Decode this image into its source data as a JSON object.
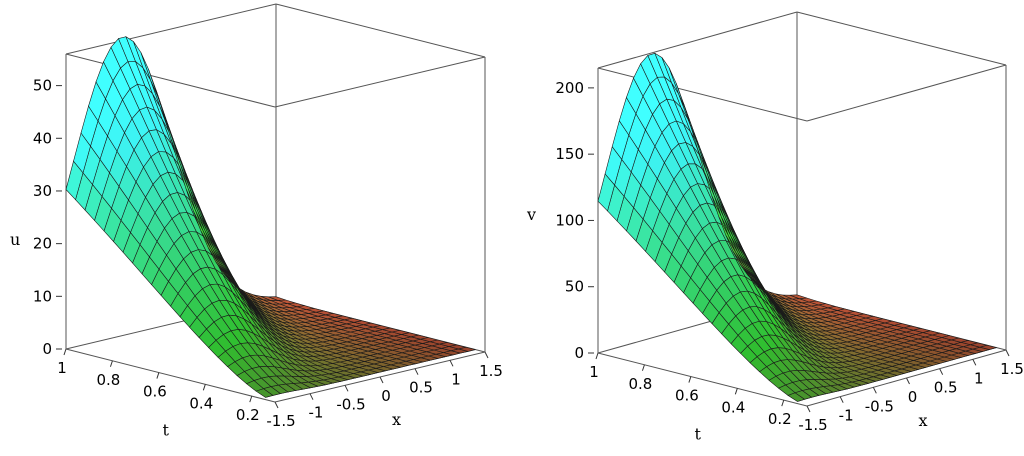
{
  "chart_data": [
    {
      "type": "surface3d",
      "zlabel": "u",
      "xlabel": "x",
      "tlabel": "t",
      "z_ticks": [
        "0",
        "10",
        "20",
        "30",
        "40",
        "50"
      ],
      "t_ticks": [
        "1",
        "0.8",
        "0.6",
        "0.4",
        "0.2"
      ],
      "x_ticks": [
        "-1.5",
        "-1",
        "-0.5",
        "0",
        "0.5",
        "1",
        "1.5"
      ],
      "zlim": [
        0,
        56
      ],
      "tlim": [
        0.1,
        1
      ],
      "xlim": [
        -1.5,
        1.5
      ],
      "peak_value": 55.5,
      "colormap": [
        "#ff4040",
        "#40ff40",
        "#40ffff"
      ]
    },
    {
      "type": "surface3d",
      "zlabel": "v",
      "xlabel": "x",
      "tlabel": "t",
      "z_ticks": [
        "0",
        "50",
        "100",
        "150",
        "200"
      ],
      "t_ticks": [
        "1",
        "0.8",
        "0.6",
        "0.4",
        "0.2"
      ],
      "x_ticks": [
        "-1.5",
        "-1",
        "-0.5",
        "0",
        "0.5",
        "1",
        "1.5"
      ],
      "zlim": [
        0,
        215
      ],
      "tlim": [
        0.1,
        1
      ],
      "xlim": [
        -1.5,
        1.5
      ],
      "peak_value": 210,
      "colormap": [
        "#ff4040",
        "#40ff40",
        "#40ffff"
      ]
    }
  ]
}
